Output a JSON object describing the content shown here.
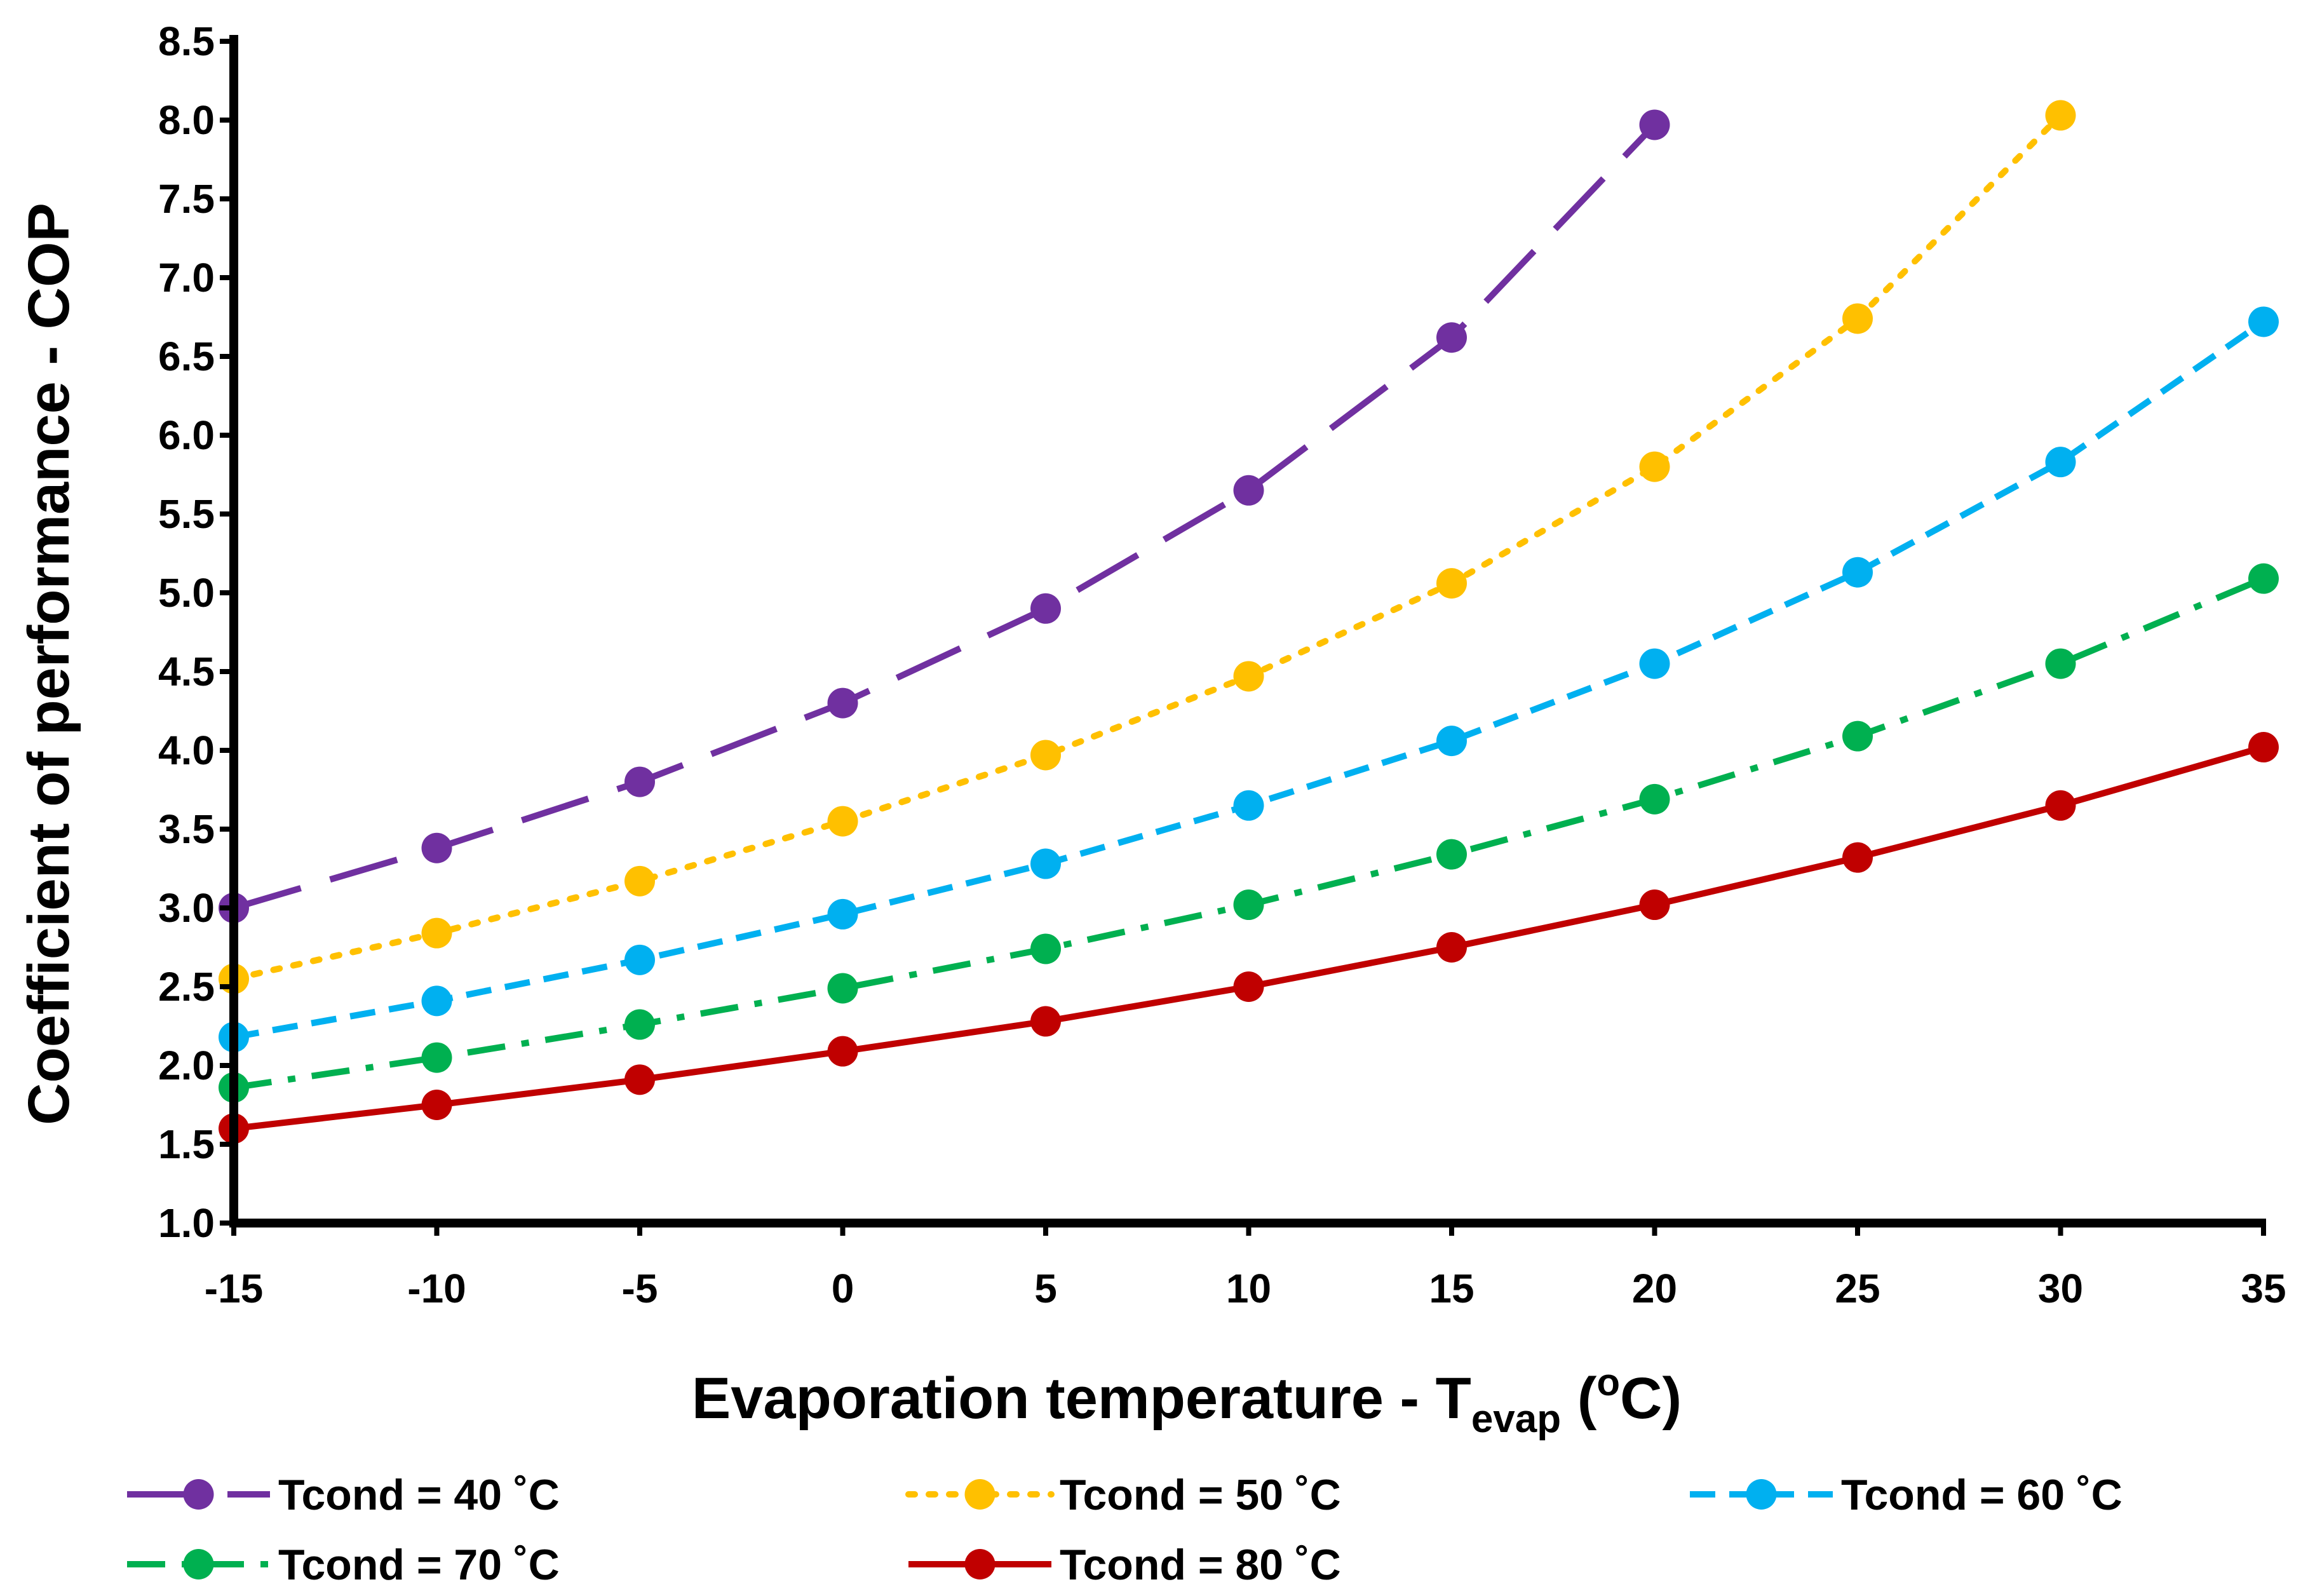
{
  "chart_data": {
    "type": "line",
    "title": "",
    "xlabel": "Evaporation temperature - T",
    "xlabel_sub": "evap",
    "xlabel_unit_open": " (",
    "xlabel_unit_sup": "o",
    "xlabel_unit_close": "C)",
    "ylabel": "Coefficient of performance - COP",
    "xlim": [
      -15,
      35
    ],
    "ylim": [
      1.0,
      8.5
    ],
    "x_ticks": [
      "-15",
      "-10",
      "-5",
      "0",
      "5",
      "10",
      "15",
      "20",
      "25",
      "30",
      "35"
    ],
    "y_ticks": [
      "1.0",
      "1.5",
      "2.0",
      "2.5",
      "3.0",
      "3.5",
      "4.0",
      "4.5",
      "5.0",
      "5.5",
      "6.0",
      "6.5",
      "7.0",
      "7.5",
      "8.0",
      "8.5"
    ],
    "grid": false,
    "legend_position": "bottom",
    "series": [
      {
        "name": "Tcond = 40 ˚C",
        "color": "#7030A0",
        "dash": "long-dash",
        "x": [
          -15,
          -10,
          -5,
          0,
          5,
          10,
          15,
          20
        ],
        "values": [
          3.0,
          3.38,
          3.8,
          4.3,
          4.9,
          5.65,
          6.62,
          7.97
        ]
      },
      {
        "name": "Tcond = 50 ˚C",
        "color": "#FFC000",
        "dash": "dot",
        "x": [
          -15,
          -10,
          -5,
          0,
          5,
          10,
          15,
          20,
          25,
          30
        ],
        "values": [
          2.55,
          2.84,
          3.17,
          3.55,
          3.97,
          4.47,
          5.06,
          5.8,
          6.74,
          8.03
        ]
      },
      {
        "name": "Tcond = 60 ˚C",
        "color": "#00B0F0",
        "dash": "dash",
        "x": [
          -15,
          -10,
          -5,
          0,
          5,
          10,
          15,
          20,
          25,
          30,
          35
        ],
        "values": [
          2.18,
          2.41,
          2.67,
          2.96,
          3.28,
          3.65,
          4.06,
          4.55,
          5.13,
          5.83,
          6.72
        ]
      },
      {
        "name": "Tcond = 70 ˚C",
        "color": "#00B050",
        "dash": "dash-dot",
        "x": [
          -15,
          -10,
          -5,
          0,
          5,
          10,
          15,
          20,
          25,
          30,
          35
        ],
        "values": [
          1.86,
          2.05,
          2.26,
          2.49,
          2.74,
          3.02,
          3.34,
          3.69,
          4.09,
          4.55,
          5.09
        ]
      },
      {
        "name": "Tcond = 80 ˚C",
        "color": "#C00000",
        "dash": "solid",
        "x": [
          -15,
          -10,
          -5,
          0,
          5,
          10,
          15,
          20,
          25,
          30,
          35
        ],
        "values": [
          1.6,
          1.75,
          1.91,
          2.09,
          2.28,
          2.5,
          2.75,
          3.02,
          3.32,
          3.65,
          4.02
        ]
      }
    ]
  }
}
